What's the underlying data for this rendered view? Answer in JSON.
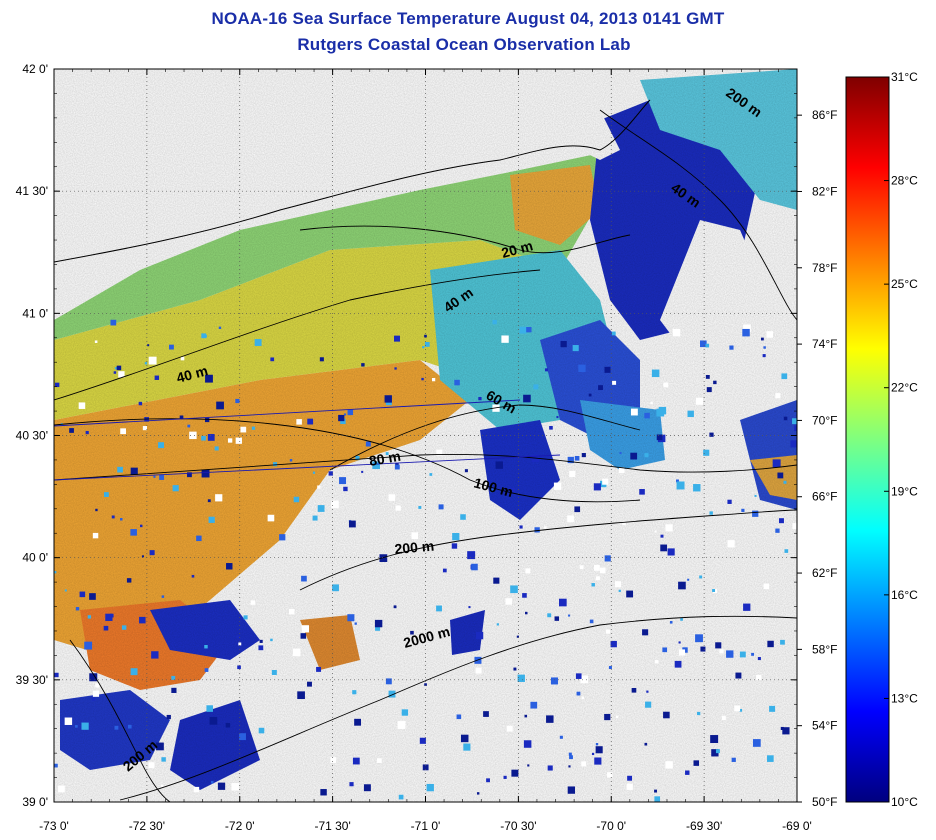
{
  "header": {
    "title": "NOAA-16 Sea Surface Temperature August 04, 2013 0141 GMT",
    "subtitle": "Rutgers Coastal Ocean Observation Lab"
  },
  "map": {
    "lon_range": [
      -73.0,
      -69.0
    ],
    "lat_range": [
      39.0,
      42.0
    ],
    "lon_ticks": [
      {
        "value": -73.0,
        "label": "-73 0'"
      },
      {
        "value": -72.5,
        "label": "-72 30'"
      },
      {
        "value": -72.0,
        "label": "-72 0'"
      },
      {
        "value": -71.5,
        "label": "-71 30'"
      },
      {
        "value": -71.0,
        "label": "-71 0'"
      },
      {
        "value": -70.5,
        "label": "-70 30'"
      },
      {
        "value": -70.0,
        "label": "-70 0'"
      },
      {
        "value": -69.5,
        "label": "-69 30'"
      },
      {
        "value": -69.0,
        "label": "-69 0'"
      }
    ],
    "lat_ticks": [
      {
        "value": 42.0,
        "label": "42 0'"
      },
      {
        "value": 41.5,
        "label": "41 30'"
      },
      {
        "value": 41.0,
        "label": "41 0'"
      },
      {
        "value": 40.5,
        "label": "40 30'"
      },
      {
        "value": 40.0,
        "label": "40 0'"
      },
      {
        "value": 39.5,
        "label": "39 30'"
      },
      {
        "value": 39.0,
        "label": "39 0'"
      }
    ],
    "grid": "dotted",
    "contour_labels": [
      "20 m",
      "40 m",
      "40 m",
      "40 m",
      "60 m",
      "80 m",
      "100 m",
      "200 m",
      "200 m",
      "200 m",
      "2000 m"
    ]
  },
  "colorbar": {
    "celsius_range": [
      10,
      31
    ],
    "fahrenheit_range": [
      50,
      88
    ],
    "celsius_ticks": [
      {
        "value": 31,
        "label": "31°C"
      },
      {
        "value": 28,
        "label": "28°C"
      },
      {
        "value": 25,
        "label": "25°C"
      },
      {
        "value": 22,
        "label": "22°C"
      },
      {
        "value": 19,
        "label": "19°C"
      },
      {
        "value": 16,
        "label": "16°C"
      },
      {
        "value": 13,
        "label": "13°C"
      },
      {
        "value": 10,
        "label": "10°C"
      }
    ],
    "fahrenheit_ticks": [
      {
        "value": 86,
        "label": "86°F"
      },
      {
        "value": 82,
        "label": "82°F"
      },
      {
        "value": 78,
        "label": "78°F"
      },
      {
        "value": 74,
        "label": "74°F"
      },
      {
        "value": 70,
        "label": "70°F"
      },
      {
        "value": 66,
        "label": "66°F"
      },
      {
        "value": 62,
        "label": "62°F"
      },
      {
        "value": 58,
        "label": "58°F"
      },
      {
        "value": 54,
        "label": "54°F"
      },
      {
        "value": 50,
        "label": "50°F"
      }
    ],
    "colormap": [
      "#00007f",
      "#0000ff",
      "#007fff",
      "#00ffff",
      "#7fff7f",
      "#ffff00",
      "#ff7f00",
      "#ff0000",
      "#7f0000"
    ]
  },
  "colors": {
    "title": "#1a2ea8",
    "warm": "#f0a030",
    "mid": "#e8e040",
    "cool": "#6ed0a0",
    "cold": "#1a2ac0"
  }
}
